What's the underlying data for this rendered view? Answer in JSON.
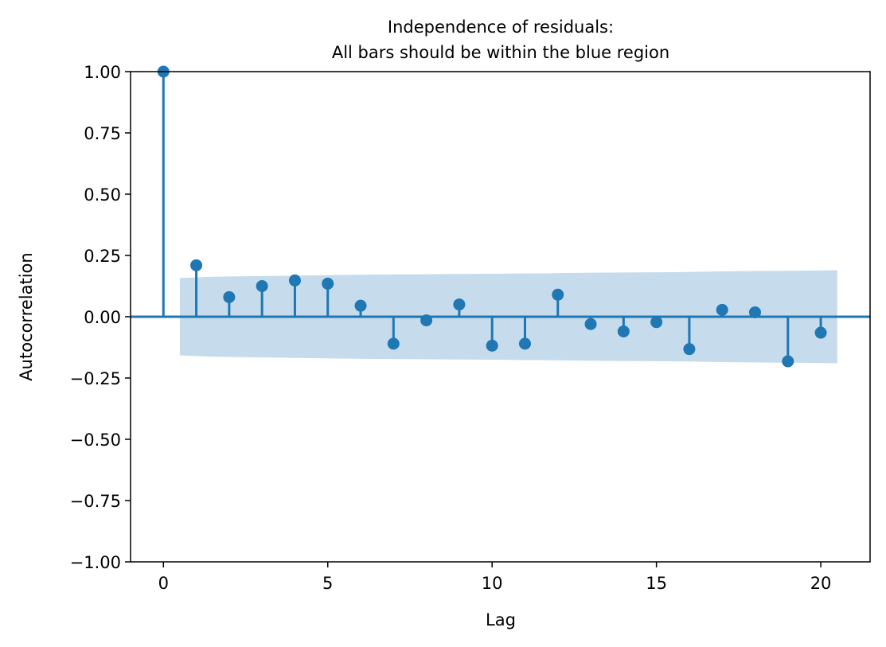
{
  "chart_data": {
    "type": "stem",
    "title": "Independence of residuals:",
    "subtitle": "All bars should be within the blue region",
    "xlabel": "Lag",
    "ylabel": "Autocorrelation",
    "xlim": [
      -1,
      21.5
    ],
    "ylim": [
      -1.0,
      1.0
    ],
    "x_ticks": [
      0,
      5,
      10,
      15,
      20
    ],
    "x_tick_labels": [
      "0",
      "5",
      "10",
      "15",
      "20"
    ],
    "y_ticks": [
      1.0,
      0.75,
      0.5,
      0.25,
      0.0,
      -0.25,
      -0.5,
      -0.75,
      -1.0
    ],
    "y_tick_labels": [
      "1.00",
      "0.75",
      "0.50",
      "0.25",
      "0.00",
      "−0.25",
      "−0.50",
      "−0.75",
      "−1.00"
    ],
    "grid": false,
    "series": [
      {
        "x": [
          0,
          1,
          2,
          3,
          4,
          5,
          6,
          7,
          8,
          9,
          10,
          11,
          12,
          13,
          14,
          15,
          16,
          17,
          18,
          19,
          20
        ],
        "values": [
          1.0,
          0.21,
          0.08,
          0.125,
          0.148,
          0.135,
          0.045,
          -0.11,
          -0.015,
          0.05,
          -0.118,
          -0.11,
          0.09,
          -0.03,
          -0.06,
          -0.022,
          -0.132,
          0.028,
          0.018,
          -0.182,
          -0.065
        ]
      }
    ],
    "confidence_band": {
      "x_start": 0.5,
      "x_end": 20.5,
      "upper": [
        0.158,
        0.163,
        0.165,
        0.167,
        0.169,
        0.171,
        0.172,
        0.173,
        0.174,
        0.175,
        0.176,
        0.177,
        0.179,
        0.18,
        0.181,
        0.182,
        0.184,
        0.186,
        0.187,
        0.188,
        0.19
      ]
    },
    "colors": {
      "stem": "#1f77b4",
      "band": "#c6dcec",
      "zero_line": "#1f77b4"
    }
  }
}
